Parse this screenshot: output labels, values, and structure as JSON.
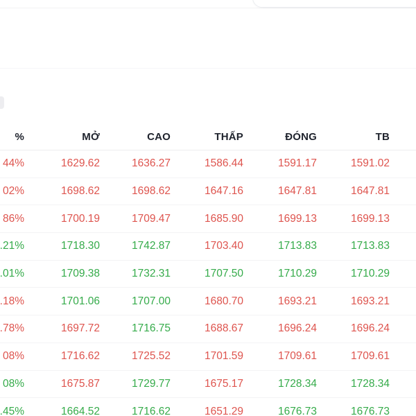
{
  "colors": {
    "up": "#35ab4a",
    "down": "#de544e",
    "header_text": "#20242e"
  },
  "table": {
    "column_keys": [
      "pct",
      "open",
      "high",
      "low",
      "close",
      "avg"
    ],
    "headers": [
      "%",
      "MỞ",
      "CAO",
      "THẤP",
      "ĐÓNG",
      "TB"
    ],
    "rows": [
      {
        "cells": [
          "44%",
          "1629.62",
          "1636.27",
          "1586.44",
          "1591.17",
          "1591.02"
        ],
        "dirs": [
          "down",
          "down",
          "down",
          "down",
          "down",
          "down"
        ]
      },
      {
        "cells": [
          "02%",
          "1698.62",
          "1698.62",
          "1647.16",
          "1647.81",
          "1647.81"
        ],
        "dirs": [
          "down",
          "down",
          "down",
          "down",
          "down",
          "down"
        ]
      },
      {
        "cells": [
          "86%",
          "1700.19",
          "1709.47",
          "1685.90",
          "1699.13",
          "1699.13"
        ],
        "dirs": [
          "down",
          "down",
          "down",
          "down",
          "down",
          "down"
        ]
      },
      {
        "cells": [
          ".21%",
          "1718.30",
          "1742.87",
          "1703.40",
          "1713.83",
          "1713.83"
        ],
        "dirs": [
          "up",
          "up",
          "up",
          "down",
          "up",
          "up"
        ]
      },
      {
        "cells": [
          ".01%",
          "1709.38",
          "1732.31",
          "1707.50",
          "1710.29",
          "1710.29"
        ],
        "dirs": [
          "up",
          "up",
          "up",
          "up",
          "up",
          "up"
        ]
      },
      {
        "cells": [
          ".18%",
          "1701.06",
          "1707.00",
          "1680.70",
          "1693.21",
          "1693.21"
        ],
        "dirs": [
          "down",
          "up",
          "up",
          "down",
          "down",
          "down"
        ]
      },
      {
        "cells": [
          ".78%",
          "1697.72",
          "1716.75",
          "1688.67",
          "1696.24",
          "1696.24"
        ],
        "dirs": [
          "down",
          "down",
          "up",
          "down",
          "down",
          "down"
        ]
      },
      {
        "cells": [
          "08%",
          "1716.62",
          "1725.52",
          "1701.59",
          "1709.61",
          "1709.61"
        ],
        "dirs": [
          "down",
          "down",
          "down",
          "down",
          "down",
          "down"
        ]
      },
      {
        "cells": [
          "08%",
          "1675.87",
          "1729.77",
          "1675.17",
          "1728.34",
          "1728.34"
        ],
        "dirs": [
          "up",
          "down",
          "up",
          "down",
          "up",
          "up"
        ]
      },
      {
        "cells": [
          ".45%",
          "1664.52",
          "1716.62",
          "1651.29",
          "1676.73",
          "1676.73"
        ],
        "dirs": [
          "up",
          "up",
          "up",
          "down",
          "up",
          "up"
        ]
      }
    ]
  }
}
